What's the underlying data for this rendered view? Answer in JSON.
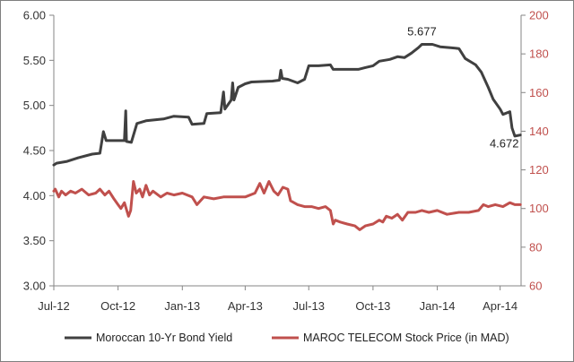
{
  "chart_data": {
    "type": "line",
    "title": "",
    "x_axis": {
      "ticks": [
        "Jul-12",
        "Oct-12",
        "Jan-13",
        "Apr-13",
        "Jul-13",
        "Oct-13",
        "Jan-14",
        "Apr-14"
      ],
      "tick_dates": [
        "2012-07-01",
        "2012-10-01",
        "2013-01-01",
        "2013-04-01",
        "2013-07-01",
        "2013-10-01",
        "2014-01-01",
        "2014-04-01"
      ],
      "range": [
        "2012-07-01",
        "2014-05-01"
      ]
    },
    "y_left": {
      "ticks": [
        "3.00",
        "3.50",
        "4.00",
        "4.50",
        "5.00",
        "5.50",
        "6.00"
      ],
      "min": 3.0,
      "max": 6.0
    },
    "y_right": {
      "ticks": [
        "60",
        "80",
        "100",
        "120",
        "140",
        "160",
        "180",
        "200"
      ],
      "min": 60,
      "max": 200,
      "color": "#c0504d"
    },
    "grid": false,
    "legend_position": "bottom",
    "annotations": [
      {
        "text": "5.677",
        "series": "Moroccan 10-Yr Bond Yield",
        "x": "2013-12-10",
        "y": 5.677
      },
      {
        "text": "4.672",
        "series": "Moroccan 10-Yr Bond Yield",
        "x": "2014-04-30",
        "y": 4.672
      }
    ],
    "series": [
      {
        "name": "Moroccan 10-Yr Bond Yield",
        "axis": "left",
        "color": "#404040",
        "points": [
          [
            "2012-07-01",
            4.34
          ],
          [
            "2012-07-05",
            4.36
          ],
          [
            "2012-07-20",
            4.38
          ],
          [
            "2012-08-05",
            4.42
          ],
          [
            "2012-08-25",
            4.46
          ],
          [
            "2012-09-05",
            4.47
          ],
          [
            "2012-09-10",
            4.71
          ],
          [
            "2012-09-14",
            4.61
          ],
          [
            "2012-10-01",
            4.61
          ],
          [
            "2012-10-10",
            4.61
          ],
          [
            "2012-10-12",
            4.94
          ],
          [
            "2012-10-13",
            4.6
          ],
          [
            "2012-10-20",
            4.59
          ],
          [
            "2012-10-28",
            4.8
          ],
          [
            "2012-11-10",
            4.83
          ],
          [
            "2012-12-05",
            4.85
          ],
          [
            "2012-12-20",
            4.88
          ],
          [
            "2013-01-10",
            4.87
          ],
          [
            "2013-01-15",
            4.79
          ],
          [
            "2013-02-01",
            4.8
          ],
          [
            "2013-02-05",
            4.91
          ],
          [
            "2013-02-25",
            4.92
          ],
          [
            "2013-03-01",
            5.15
          ],
          [
            "2013-03-03",
            4.96
          ],
          [
            "2013-03-12",
            5.06
          ],
          [
            "2013-03-14",
            5.25
          ],
          [
            "2013-03-16",
            5.06
          ],
          [
            "2013-03-22",
            5.2
          ],
          [
            "2013-04-01",
            5.24
          ],
          [
            "2013-04-10",
            5.26
          ],
          [
            "2013-05-10",
            5.27
          ],
          [
            "2013-05-20",
            5.28
          ],
          [
            "2013-05-22",
            5.39
          ],
          [
            "2013-05-24",
            5.3
          ],
          [
            "2013-06-01",
            5.29
          ],
          [
            "2013-06-15",
            5.25
          ],
          [
            "2013-06-25",
            5.29
          ],
          [
            "2013-07-01",
            5.44
          ],
          [
            "2013-07-15",
            5.44
          ],
          [
            "2013-08-01",
            5.45
          ],
          [
            "2013-08-05",
            5.4
          ],
          [
            "2013-08-20",
            5.4
          ],
          [
            "2013-09-10",
            5.4
          ],
          [
            "2013-09-20",
            5.42
          ],
          [
            "2013-10-01",
            5.44
          ],
          [
            "2013-10-10",
            5.49
          ],
          [
            "2013-10-25",
            5.51
          ],
          [
            "2013-11-05",
            5.54
          ],
          [
            "2013-11-15",
            5.53
          ],
          [
            "2013-11-25",
            5.58
          ],
          [
            "2013-12-05",
            5.64
          ],
          [
            "2013-12-10",
            5.677
          ],
          [
            "2013-12-25",
            5.677
          ],
          [
            "2014-01-05",
            5.65
          ],
          [
            "2014-01-20",
            5.64
          ],
          [
            "2014-02-01",
            5.63
          ],
          [
            "2014-02-10",
            5.52
          ],
          [
            "2014-02-25",
            5.45
          ],
          [
            "2014-03-05",
            5.37
          ],
          [
            "2014-03-15",
            5.2
          ],
          [
            "2014-03-22",
            5.07
          ],
          [
            "2014-04-01",
            4.96
          ],
          [
            "2014-04-05",
            4.9
          ],
          [
            "2014-04-15",
            4.93
          ],
          [
            "2014-04-18",
            4.75
          ],
          [
            "2014-04-22",
            4.66
          ],
          [
            "2014-04-30",
            4.672
          ]
        ]
      },
      {
        "name": "MAROC TELECOM Stock Price (in MAD)",
        "axis": "right",
        "color": "#c0504d",
        "points": [
          [
            "2012-07-01",
            109
          ],
          [
            "2012-07-03",
            110
          ],
          [
            "2012-07-08",
            106
          ],
          [
            "2012-07-12",
            109
          ],
          [
            "2012-07-18",
            107
          ],
          [
            "2012-07-25",
            109
          ],
          [
            "2012-08-01",
            108
          ],
          [
            "2012-08-10",
            110
          ],
          [
            "2012-08-20",
            107
          ],
          [
            "2012-08-30",
            108
          ],
          [
            "2012-09-05",
            110
          ],
          [
            "2012-09-12",
            107
          ],
          [
            "2012-09-18",
            109
          ],
          [
            "2012-09-25",
            105
          ],
          [
            "2012-10-01",
            102
          ],
          [
            "2012-10-05",
            100
          ],
          [
            "2012-10-10",
            103
          ],
          [
            "2012-10-16",
            96
          ],
          [
            "2012-10-19",
            99
          ],
          [
            "2012-10-23",
            114
          ],
          [
            "2012-10-27",
            108
          ],
          [
            "2012-11-01",
            110
          ],
          [
            "2012-11-05",
            106
          ],
          [
            "2012-11-10",
            112
          ],
          [
            "2012-11-15",
            107
          ],
          [
            "2012-11-20",
            109
          ],
          [
            "2012-12-01",
            106
          ],
          [
            "2012-12-10",
            108
          ],
          [
            "2012-12-20",
            107
          ],
          [
            "2013-01-01",
            108
          ],
          [
            "2013-01-15",
            106
          ],
          [
            "2013-01-22",
            102
          ],
          [
            "2013-02-01",
            106
          ],
          [
            "2013-02-15",
            105
          ],
          [
            "2013-03-01",
            106
          ],
          [
            "2013-03-15",
            106
          ],
          [
            "2013-04-01",
            106
          ],
          [
            "2013-04-15",
            108
          ],
          [
            "2013-04-22",
            113
          ],
          [
            "2013-04-28",
            108
          ],
          [
            "2013-05-05",
            114
          ],
          [
            "2013-05-12",
            109
          ],
          [
            "2013-05-18",
            107
          ],
          [
            "2013-05-25",
            111
          ],
          [
            "2013-06-01",
            110
          ],
          [
            "2013-06-05",
            104
          ],
          [
            "2013-06-15",
            102
          ],
          [
            "2013-06-25",
            101
          ],
          [
            "2013-07-05",
            101
          ],
          [
            "2013-07-15",
            100
          ],
          [
            "2013-07-25",
            101
          ],
          [
            "2013-08-01",
            99
          ],
          [
            "2013-08-05",
            92
          ],
          [
            "2013-08-08",
            94
          ],
          [
            "2013-08-15",
            93
          ],
          [
            "2013-08-25",
            92
          ],
          [
            "2013-09-05",
            91
          ],
          [
            "2013-09-12",
            89
          ],
          [
            "2013-09-20",
            91
          ],
          [
            "2013-10-01",
            92
          ],
          [
            "2013-10-10",
            94
          ],
          [
            "2013-10-15",
            93
          ],
          [
            "2013-10-20",
            96
          ],
          [
            "2013-10-28",
            95
          ],
          [
            "2013-11-05",
            97
          ],
          [
            "2013-11-12",
            94
          ],
          [
            "2013-11-20",
            98
          ],
          [
            "2013-12-01",
            98
          ],
          [
            "2013-12-10",
            99
          ],
          [
            "2013-12-20",
            98
          ],
          [
            "2014-01-01",
            99
          ],
          [
            "2014-01-15",
            97
          ],
          [
            "2014-02-01",
            98
          ],
          [
            "2014-02-15",
            98
          ],
          [
            "2014-03-01",
            99
          ],
          [
            "2014-03-08",
            102
          ],
          [
            "2014-03-15",
            101
          ],
          [
            "2014-03-25",
            102
          ],
          [
            "2014-04-05",
            101
          ],
          [
            "2014-04-15",
            103
          ],
          [
            "2014-04-22",
            102
          ],
          [
            "2014-04-30",
            102
          ]
        ]
      }
    ]
  }
}
